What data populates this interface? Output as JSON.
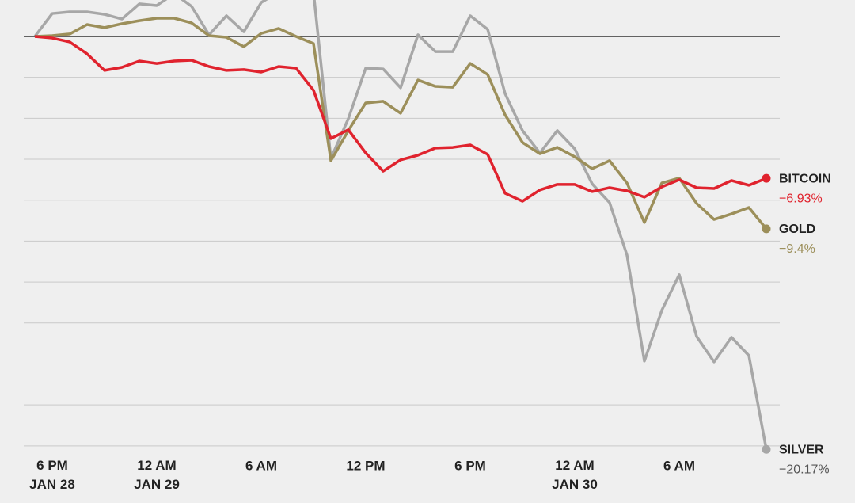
{
  "chart_data": {
    "type": "line",
    "categories": [
      null,
      "6 PM\nJAN 28",
      null,
      null,
      null,
      null,
      null,
      "12 AM\nJAN 29",
      null,
      null,
      null,
      null,
      null,
      "6 AM",
      null,
      null,
      null,
      null,
      null,
      "12 PM",
      null,
      null,
      null,
      null,
      null,
      "6 PM",
      null,
      null,
      null,
      null,
      null,
      "12 AM\nJAN 30",
      null,
      null,
      null,
      null,
      null,
      "6 AM",
      null,
      null,
      null,
      null,
      null
    ],
    "series": [
      {
        "name": "SILVER",
        "color": "#a7a7a7",
        "values": [
          0,
          1.12,
          1.2,
          1.2,
          1.08,
          0.85,
          1.59,
          1.51,
          2.09,
          1.47,
          0.08,
          1.01,
          0.23,
          1.66,
          2.17,
          2.36,
          2.17,
          -5.96,
          -4.02,
          -1.55,
          -1.59,
          -2.51,
          0.08,
          -0.74,
          -0.74,
          1.01,
          0.35,
          -2.79,
          -4.6,
          -5.69,
          -4.6,
          -5.49,
          -7.2,
          -8.12,
          -10.68,
          -15.86,
          -13.38,
          -11.64,
          -14.66,
          -15.9,
          -14.7,
          -15.59,
          -20.17
        ],
        "value_labels": [
          null,
          null,
          null,
          null,
          null,
          null,
          null,
          null,
          null,
          null,
          null,
          null,
          null,
          null,
          null,
          null,
          null,
          null,
          null,
          null,
          null,
          null,
          null,
          null,
          null,
          null,
          null,
          null,
          null,
          null,
          null,
          null,
          null,
          null,
          null,
          null,
          null,
          null,
          null,
          null,
          null,
          null,
          "−20.17%"
        ]
      },
      {
        "name": "GOLD",
        "color": "#9c8f5a",
        "values": [
          0,
          0.04,
          0.12,
          0.58,
          0.43,
          0.62,
          0.77,
          0.89,
          0.89,
          0.66,
          0.04,
          -0.04,
          -0.5,
          0.15,
          0.39,
          0,
          -0.35,
          -6.07,
          -4.6,
          -3.25,
          -3.17,
          -3.75,
          -2.13,
          -2.44,
          -2.48,
          -1.32,
          -1.86,
          -3.83,
          -5.18,
          -5.73,
          -5.42,
          -5.88,
          -6.46,
          -6.07,
          -7.16,
          -9.09,
          -7.16,
          -6.92,
          -8.16,
          -8.94,
          -8.67,
          -8.36,
          -9.4
        ],
        "value_labels": [
          null,
          null,
          null,
          null,
          null,
          null,
          null,
          null,
          null,
          null,
          null,
          null,
          null,
          null,
          null,
          null,
          null,
          null,
          null,
          null,
          null,
          null,
          null,
          null,
          null,
          null,
          null,
          null,
          null,
          null,
          null,
          null,
          null,
          null,
          null,
          null,
          null,
          null,
          null,
          null,
          null,
          null,
          "−9.4%"
        ]
      },
      {
        "name": "BITCOIN",
        "color": "#e0232e",
        "values": [
          0,
          -0.08,
          -0.27,
          -0.85,
          -1.66,
          -1.51,
          -1.2,
          -1.32,
          -1.2,
          -1.16,
          -1.47,
          -1.66,
          -1.62,
          -1.74,
          -1.47,
          -1.55,
          -2.63,
          -4.99,
          -4.56,
          -5.69,
          -6.58,
          -6.03,
          -5.8,
          -5.45,
          -5.42,
          -5.3,
          -5.76,
          -7.66,
          -8.05,
          -7.5,
          -7.23,
          -7.23,
          -7.58,
          -7.39,
          -7.54,
          -7.85,
          -7.35,
          -7.0,
          -7.39,
          -7.43,
          -7.04,
          -7.27,
          -6.93
        ],
        "value_labels": [
          null,
          null,
          null,
          null,
          null,
          null,
          null,
          null,
          null,
          null,
          null,
          null,
          null,
          null,
          null,
          null,
          null,
          null,
          null,
          null,
          null,
          null,
          null,
          null,
          null,
          null,
          null,
          null,
          null,
          null,
          null,
          null,
          null,
          null,
          null,
          null,
          null,
          null,
          null,
          null,
          null,
          null,
          "−6.93%"
        ]
      }
    ],
    "ylim": [
      -20.47,
      1.78
    ],
    "yticks": [
      0,
      -2,
      -4,
      -6,
      -8,
      -10,
      -12,
      -14,
      -16,
      -18,
      -20
    ],
    "grid": true
  }
}
